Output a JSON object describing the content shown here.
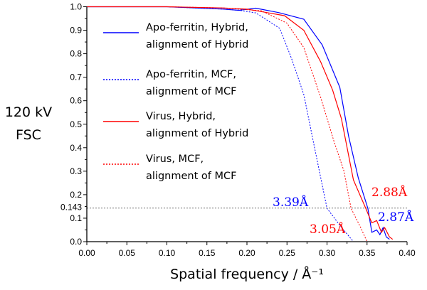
{
  "chart_data": {
    "type": "line",
    "title": "",
    "ylabel_lines": [
      "120 kV",
      "FSC"
    ],
    "xlabel": "Spatial frequency / Å⁻¹",
    "xlim": [
      0,
      0.4
    ],
    "ylim": [
      0,
      1.0
    ],
    "xticks": [
      "0.00",
      "0.05",
      "0.10",
      "0.15",
      "0.20",
      "0.25",
      "0.30",
      "0.35",
      "0.40"
    ],
    "yticks": [
      "0.0",
      "0.1",
      "0.2",
      "0.3",
      "0.4",
      "0.5",
      "0.6",
      "0.7",
      "0.8",
      "0.9",
      "1.0"
    ],
    "threshold": {
      "value": 0.143,
      "label": "0.143"
    },
    "grid": false,
    "legend_position": "top-left",
    "series": [
      {
        "name_lines": [
          "Apo-ferritin, Hybrid,",
          "alignment of Hybrid"
        ],
        "color": "#0000ff",
        "style": "solid",
        "x": [
          0,
          0.1,
          0.17,
          0.19,
          0.211,
          0.24,
          0.271,
          0.294,
          0.316,
          0.327,
          0.339,
          0.351,
          0.356,
          0.362,
          0.366,
          0.37,
          0.374,
          0.378
        ],
        "y": [
          1,
          1,
          0.99,
          0.985,
          0.994,
          0.975,
          0.947,
          0.838,
          0.657,
          0.448,
          0.272,
          0.142,
          0.04,
          0.05,
          0.03,
          0.06,
          0.02,
          0.01
        ]
      },
      {
        "name_lines": [
          "Apo-ferritin, MCF,",
          "alignment of MCF"
        ],
        "color": "#0000ff",
        "style": "dotted",
        "x": [
          0,
          0.1,
          0.17,
          0.19,
          0.211,
          0.241,
          0.256,
          0.271,
          0.283,
          0.294,
          0.3,
          0.316,
          0.333
        ],
        "y": [
          1,
          1,
          0.99,
          0.985,
          0.974,
          0.908,
          0.777,
          0.626,
          0.424,
          0.242,
          0.142,
          0.07,
          0
        ]
      },
      {
        "name_lines": [
          "Virus, Hybrid,",
          "alignment of Hybrid"
        ],
        "color": "#ff0000",
        "style": "solid",
        "x": [
          0,
          0.1,
          0.17,
          0.2,
          0.247,
          0.271,
          0.292,
          0.307,
          0.318,
          0.333,
          0.348,
          0.356,
          0.362,
          0.368,
          0.372,
          0.378,
          0.382
        ],
        "y": [
          1,
          1,
          0.995,
          0.99,
          0.962,
          0.9,
          0.766,
          0.645,
          0.524,
          0.263,
          0.145,
          0.08,
          0.09,
          0.04,
          0.06,
          0.02,
          0.01
        ]
      },
      {
        "name_lines": [
          "Virus, MCF,",
          "alignment of MCF"
        ],
        "color": "#ff0000",
        "style": "dotted",
        "x": [
          0,
          0.1,
          0.17,
          0.218,
          0.25,
          0.271,
          0.292,
          0.309,
          0.321,
          0.33,
          0.342,
          0.35
        ],
        "y": [
          1,
          1,
          0.995,
          0.983,
          0.93,
          0.826,
          0.615,
          0.424,
          0.303,
          0.142,
          0.06,
          0
        ]
      }
    ],
    "annotations": [
      {
        "text": "3.39Å",
        "color": "#0000ff"
      },
      {
        "text": "2.88Å",
        "color": "#ff0000"
      },
      {
        "text": "2.87Å",
        "color": "#0000ff"
      },
      {
        "text": "3.05Å",
        "color": "#ff0000"
      }
    ]
  }
}
